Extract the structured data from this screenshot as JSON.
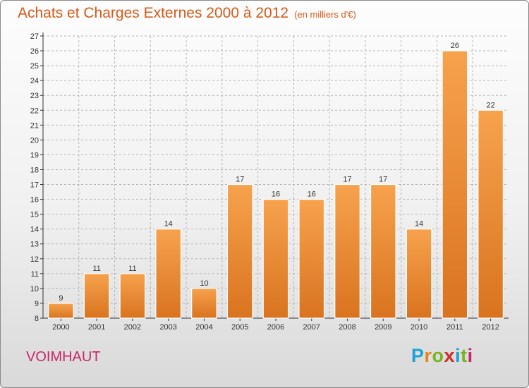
{
  "title": "Achats et Charges Externes 2000 à 2012",
  "subtitle": "(en milliers d'€)",
  "commune": "VOIMHAUT",
  "logo": {
    "letters": [
      "P",
      "r",
      "o",
      "x",
      "i",
      "t",
      "i"
    ],
    "colors": [
      "#1aa3d8",
      "#e8831a",
      "#79b41e",
      "#d12a2a",
      "#1aa3d8",
      "#79b41e",
      "#c8256a"
    ]
  },
  "colors": {
    "title": "#d65a1a",
    "bar_top": "#f7a24d",
    "bar_bottom": "#d9731f",
    "commune": "#c8256a",
    "axis": "#333333",
    "grid": "#b5b5b5"
  },
  "chart_data": {
    "type": "bar",
    "title": "Achats et Charges Externes 2000 à 2012",
    "subtitle": "(en milliers d'€)",
    "categories": [
      "2000",
      "2001",
      "2002",
      "2003",
      "2004",
      "2005",
      "2006",
      "2007",
      "2008",
      "2009",
      "2010",
      "2011",
      "2012"
    ],
    "values": [
      9,
      11,
      11,
      14,
      10,
      17,
      16,
      16,
      17,
      17,
      14,
      26,
      22
    ],
    "ylim": [
      8,
      27
    ],
    "yticks": [
      8,
      9,
      10,
      11,
      12,
      13,
      14,
      15,
      16,
      17,
      18,
      19,
      20,
      21,
      22,
      23,
      24,
      25,
      26,
      27
    ],
    "grid": true,
    "data_labels": true,
    "xlabel": "",
    "ylabel": ""
  }
}
